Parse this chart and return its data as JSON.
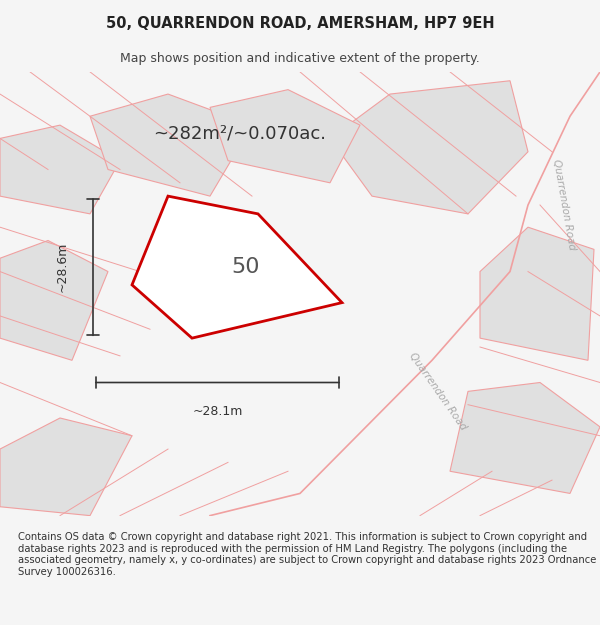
{
  "title_line1": "50, QUARRENDON ROAD, AMERSHAM, HP7 9EH",
  "title_line2": "Map shows position and indicative extent of the property.",
  "area_label": "~282m²/~0.070ac.",
  "number_label": "50",
  "dim_vertical": "~28.6m",
  "dim_horizontal": "~28.1m",
  "road_label_diagonal": "Quarrendon Road",
  "road_label_right": "Quarrendon Road",
  "footer_text": "Contains OS data © Crown copyright and database right 2021. This information is subject to Crown copyright and database rights 2023 and is reproduced with the permission of HM Land Registry. The polygons (including the associated geometry, namely x, y co-ordinates) are subject to Crown copyright and database rights 2023 Ordnance Survey 100026316.",
  "bg_color": "#f5f5f5",
  "map_bg": "#ffffff",
  "plot_fill": "#ffffff",
  "plot_edge": "#cc0000",
  "road_fill": "#e8e8e8",
  "road_line": "#f0a0a0",
  "road_label_color": "#aaaaaa",
  "dim_line_color": "#333333",
  "area_text_color": "#333333",
  "number_color": "#555555"
}
